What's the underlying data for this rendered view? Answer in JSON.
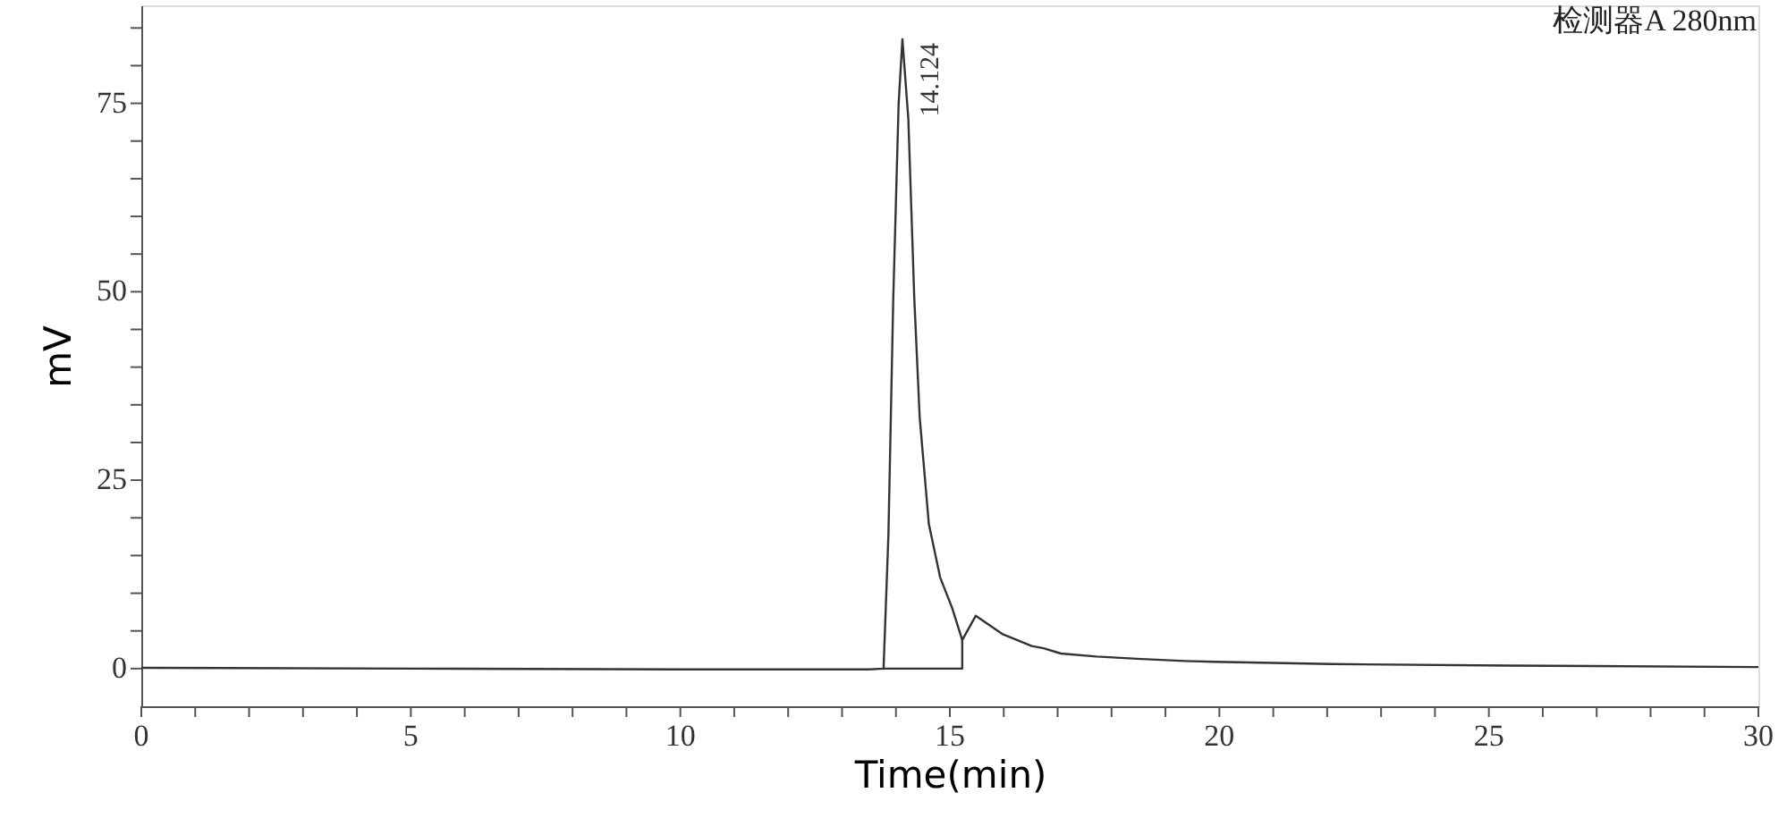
{
  "chart_data": {
    "type": "line",
    "xlabel": "Time(min)",
    "ylabel": "mV",
    "annotations": [
      {
        "text": "14.124",
        "x": 14.124,
        "y": 83.5
      },
      "检测器A 280nm"
    ],
    "xlim": [
      0,
      30
    ],
    "ylim": [
      -5,
      88
    ],
    "xticks": [
      0,
      {
        "value": 1,
        "label": null
      },
      {
        "value": 2,
        "label": null
      },
      {
        "value": 3,
        "label": null
      },
      {
        "value": 4,
        "label": null
      },
      5,
      {
        "value": 6,
        "label": null
      },
      {
        "value": 7,
        "label": null
      },
      {
        "value": 8,
        "label": null
      },
      {
        "value": 9,
        "label": null
      },
      10,
      {
        "value": 11,
        "label": null
      },
      {
        "value": 12,
        "label": null
      },
      {
        "value": 13,
        "label": null
      },
      {
        "value": 14,
        "label": null
      },
      15,
      {
        "value": 16,
        "label": null
      },
      {
        "value": 17,
        "label": null
      },
      {
        "value": 18,
        "label": null
      },
      {
        "value": 19,
        "label": null
      },
      20,
      {
        "value": 21,
        "label": null
      },
      {
        "value": 22,
        "label": null
      },
      {
        "value": 23,
        "label": null
      },
      {
        "value": 24,
        "label": null
      },
      25,
      {
        "value": 26,
        "label": null
      },
      {
        "value": 27,
        "label": null
      },
      {
        "value": 28,
        "label": null
      },
      {
        "value": 29,
        "label": null
      },
      30
    ],
    "yticks": [
      0,
      {
        "value": 5,
        "label": null
      },
      {
        "value": 10,
        "label": null
      },
      {
        "value": 15,
        "label": null
      },
      {
        "value": 20,
        "label": null
      },
      25,
      {
        "value": 30,
        "label": null
      },
      {
        "value": 35,
        "label": null
      },
      {
        "value": 40,
        "label": null
      },
      {
        "value": 45,
        "label": null
      },
      50,
      {
        "value": 55,
        "label": null
      },
      {
        "value": 60,
        "label": null
      },
      {
        "value": 65,
        "label": null
      },
      {
        "value": 70,
        "label": null
      },
      75,
      {
        "value": 80,
        "label": null
      },
      {
        "value": 85,
        "label": null
      }
    ],
    "grid": false,
    "marker": "none",
    "line_style": "solid",
    "series": [
      {
        "color": "#333333",
        "x": [
          0,
          5,
          10,
          13.5,
          13.77,
          13.86,
          13.95,
          14.05,
          14.12,
          14.23,
          14.34,
          14.44,
          14.61,
          14.82,
          15.04,
          15.23,
          15.48,
          15.97,
          16.52,
          16.74,
          17.06,
          17.72,
          18.47,
          19.36,
          19.9,
          22.08,
          25.35,
          29.94,
          30
        ],
        "values": [
          0.1,
          0,
          -0.1,
          -0.1,
          0,
          17.6,
          49,
          75,
          83.5,
          72.9,
          49.2,
          33.4,
          19.2,
          12.1,
          8.1,
          3.8,
          7.0,
          4.6,
          3.0,
          2.7,
          2.0,
          1.6,
          1.3,
          1.0,
          0.9,
          0.6,
          0.4,
          0.2,
          0.2
        ]
      },
      {
        "color": "#333333",
        "x": [
          13.77,
          15.23,
          15.23
        ],
        "values": [
          0,
          0,
          3.8
        ]
      }
    ]
  }
}
